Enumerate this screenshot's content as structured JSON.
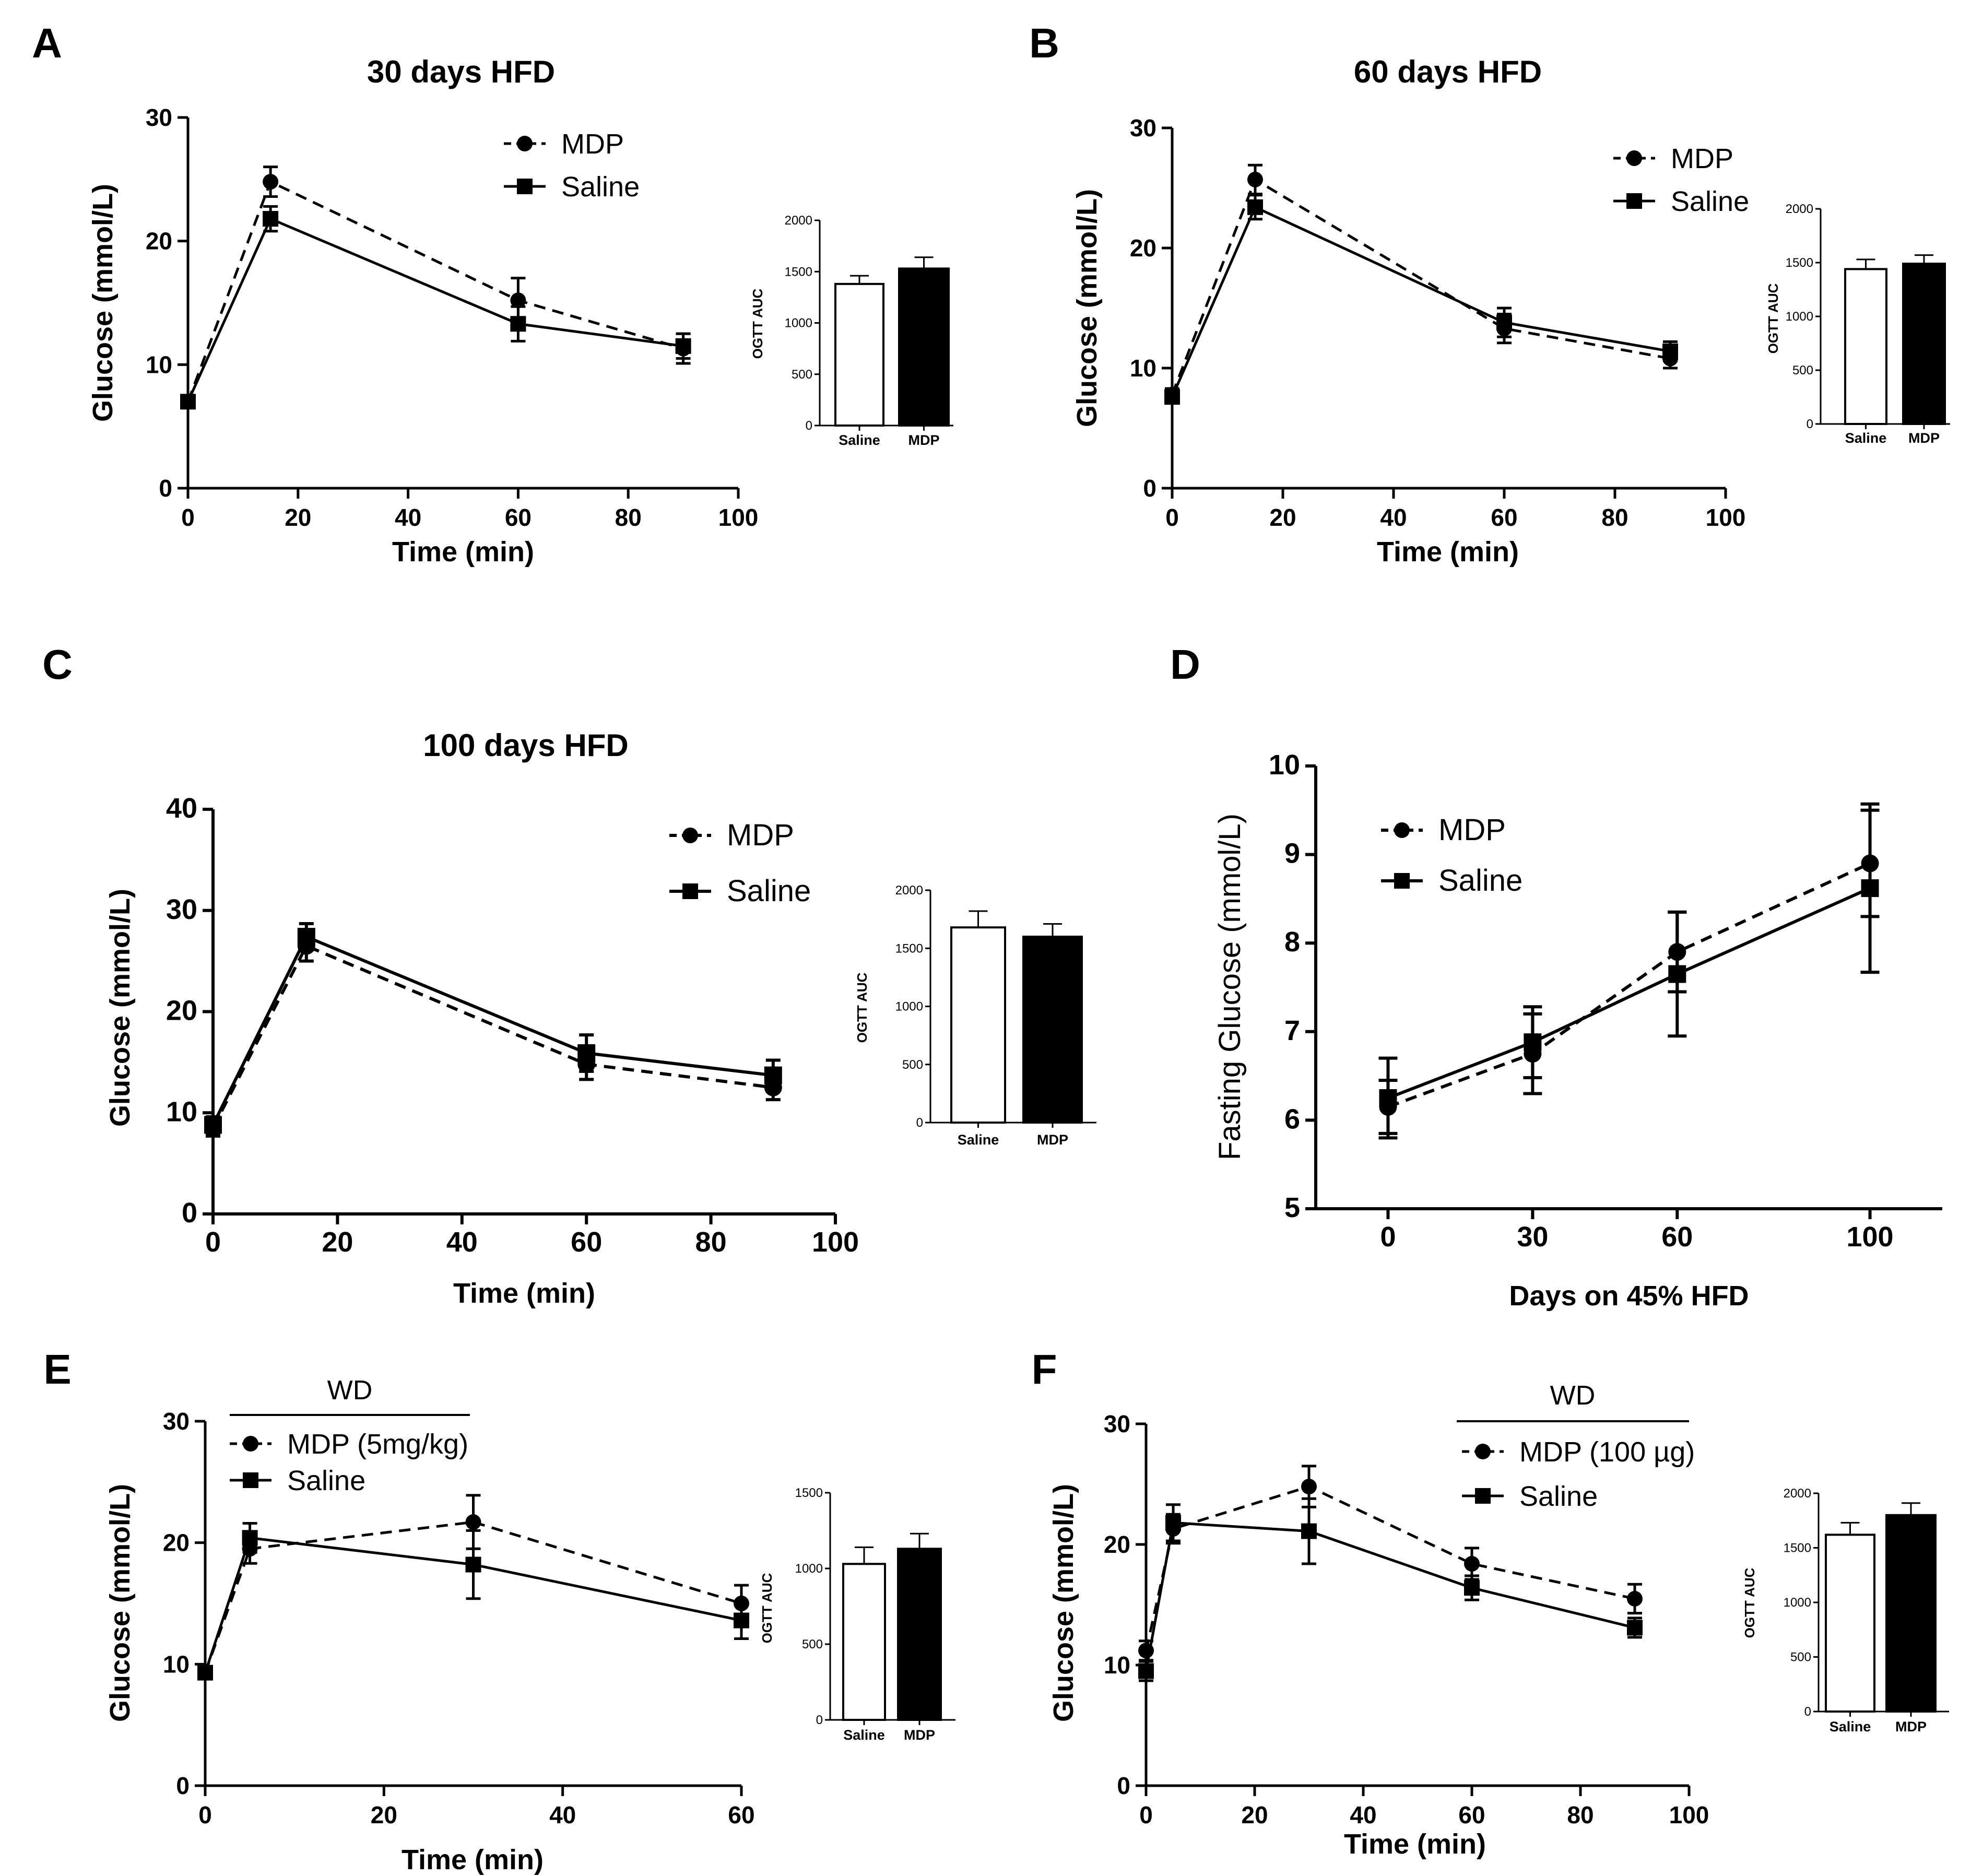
{
  "chart_data": [
    {
      "id": "A",
      "panel_label": "A",
      "type": "line",
      "title": "30 days HFD",
      "xlabel": "Time (min)",
      "ylabel": "Glucose (mmol/L)",
      "xlim": [
        0,
        100
      ],
      "ylim": [
        0,
        30
      ],
      "xticks": [
        "0",
        "20",
        "40",
        "60",
        "80",
        "100"
      ],
      "yticks": [
        "0",
        "10",
        "20",
        "30"
      ],
      "legend_header": "",
      "series": [
        {
          "name": "MDP",
          "style": "dashed",
          "marker": "circle",
          "x": [
            0,
            15,
            60,
            90
          ],
          "y": [
            7.0,
            24.8,
            15.2,
            11.3
          ],
          "err": [
            0.4,
            1.2,
            1.8,
            1.2
          ]
        },
        {
          "name": "Saline",
          "style": "solid",
          "marker": "square",
          "x": [
            0,
            15,
            60,
            90
          ],
          "y": [
            7.0,
            21.8,
            13.3,
            11.5
          ],
          "err": [
            0.3,
            1.0,
            1.4,
            1.0
          ]
        }
      ],
      "auc": {
        "ylabel": "OGTT AUC",
        "ylim": [
          0,
          2000
        ],
        "yticks": [
          "0",
          "500",
          "1000",
          "1500",
          "2000"
        ],
        "categories": [
          "Saline",
          "MDP"
        ],
        "values": [
          1380,
          1530
        ],
        "err": [
          80,
          110
        ]
      }
    },
    {
      "id": "B",
      "panel_label": "B",
      "type": "line",
      "title": "60 days HFD",
      "xlabel": "Time (min)",
      "ylabel": "Glucose (mmol/L)",
      "xlim": [
        0,
        100
      ],
      "ylim": [
        0,
        30
      ],
      "xticks": [
        "0",
        "20",
        "40",
        "60",
        "80",
        "100"
      ],
      "yticks": [
        "0",
        "10",
        "20",
        "30"
      ],
      "legend_header": "",
      "series": [
        {
          "name": "MDP",
          "style": "dashed",
          "marker": "circle",
          "x": [
            0,
            15,
            60,
            90
          ],
          "y": [
            7.8,
            25.7,
            13.3,
            10.8
          ],
          "err": [
            0.5,
            1.2,
            1.2,
            0.8
          ]
        },
        {
          "name": "Saline",
          "style": "solid",
          "marker": "square",
          "x": [
            0,
            15,
            60,
            90
          ],
          "y": [
            7.6,
            23.4,
            13.8,
            11.4
          ],
          "err": [
            0.5,
            1.0,
            1.2,
            0.8
          ]
        }
      ],
      "auc": {
        "ylabel": "OGTT AUC",
        "ylim": [
          0,
          2000
        ],
        "yticks": [
          "0",
          "500",
          "1000",
          "1500",
          "2000"
        ],
        "categories": [
          "Saline",
          "MDP"
        ],
        "values": [
          1440,
          1490
        ],
        "err": [
          90,
          80
        ]
      }
    },
    {
      "id": "C",
      "panel_label": "C",
      "type": "line",
      "title": "100 days HFD",
      "xlabel": "Time (min)",
      "ylabel": "Glucose (mmol/L)",
      "xlim": [
        0,
        100
      ],
      "ylim": [
        0,
        40
      ],
      "xticks": [
        "0",
        "20",
        "40",
        "60",
        "80",
        "100"
      ],
      "yticks": [
        "0",
        "10",
        "20",
        "30",
        "40"
      ],
      "legend_header": "",
      "series": [
        {
          "name": "MDP",
          "style": "dashed",
          "marker": "circle",
          "x": [
            0,
            15,
            60,
            90
          ],
          "y": [
            8.5,
            26.5,
            14.8,
            12.5
          ],
          "err": [
            0.8,
            1.5,
            1.5,
            1.2
          ]
        },
        {
          "name": "Saline",
          "style": "solid",
          "marker": "square",
          "x": [
            0,
            15,
            60,
            90
          ],
          "y": [
            8.8,
            27.4,
            15.9,
            13.7
          ],
          "err": [
            0.8,
            1.3,
            1.8,
            1.5
          ]
        }
      ],
      "auc": {
        "ylabel": "OGTT AUC",
        "ylim": [
          0,
          2000
        ],
        "yticks": [
          "0",
          "500",
          "1000",
          "1500",
          "2000"
        ],
        "categories": [
          "Saline",
          "MDP"
        ],
        "values": [
          1680,
          1600
        ],
        "err": [
          140,
          110
        ]
      }
    },
    {
      "id": "D",
      "panel_label": "D",
      "type": "line",
      "title": "",
      "xlabel": "Days on 45% HFD",
      "ylabel": "Fasting Glucose (mmol/L)",
      "xlim": [
        -15,
        115
      ],
      "ylim": [
        5,
        10
      ],
      "xticks": [
        "0",
        "30",
        "60",
        "100"
      ],
      "yticks": [
        "5",
        "6",
        "7",
        "8",
        "9",
        "10"
      ],
      "legend_header": "",
      "series": [
        {
          "name": "MDP",
          "style": "dashed",
          "marker": "circle",
          "x": [
            0,
            30,
            60,
            100
          ],
          "y": [
            6.15,
            6.75,
            7.9,
            8.9
          ],
          "err": [
            0.3,
            0.45,
            0.45,
            0.6
          ]
        },
        {
          "name": "Saline",
          "style": "solid",
          "marker": "square",
          "x": [
            0,
            30,
            60,
            100
          ],
          "y": [
            6.25,
            6.88,
            7.65,
            8.62
          ],
          "err": [
            0.45,
            0.4,
            0.7,
            0.95
          ]
        }
      ],
      "auc": null
    },
    {
      "id": "E",
      "panel_label": "E",
      "type": "line",
      "title": "",
      "xlabel": "Time (min)",
      "ylabel": "Glucose (mmol/L)",
      "xlim": [
        0,
        60
      ],
      "ylim": [
        0,
        30
      ],
      "xticks": [
        "0",
        "20",
        "40",
        "60"
      ],
      "yticks": [
        "0",
        "10",
        "20",
        "30"
      ],
      "legend_header": "WD",
      "series": [
        {
          "name": "MDP (5mg/kg)",
          "style": "dashed",
          "marker": "circle",
          "x": [
            0,
            5,
            30,
            60
          ],
          "y": [
            9.3,
            19.5,
            21.7,
            15.0
          ],
          "err": [
            0.5,
            1.2,
            2.2,
            1.5
          ]
        },
        {
          "name": "Saline",
          "style": "solid",
          "marker": "square",
          "x": [
            0,
            5,
            30,
            60
          ],
          "y": [
            9.3,
            20.4,
            18.2,
            13.6
          ],
          "err": [
            0.5,
            1.2,
            2.8,
            1.5
          ]
        }
      ],
      "auc": {
        "ylabel": "OGTT AUC",
        "ylim": [
          0,
          1500
        ],
        "yticks": [
          "0",
          "500",
          "1000",
          "1500"
        ],
        "categories": [
          "Saline",
          "MDP"
        ],
        "values": [
          1030,
          1130
        ],
        "err": [
          110,
          100
        ]
      }
    },
    {
      "id": "F",
      "panel_label": "F",
      "type": "line",
      "title": "",
      "xlabel": "Time (min)",
      "ylabel": "Glucose (mmol/L)",
      "xlim": [
        0,
        100
      ],
      "ylim": [
        0,
        30
      ],
      "xticks": [
        "0",
        "20",
        "40",
        "60",
        "80",
        "100"
      ],
      "yticks": [
        "0",
        "10",
        "20",
        "30"
      ],
      "legend_header": "WD",
      "series": [
        {
          "name": "MDP (100 µg)",
          "style": "dashed",
          "marker": "circle",
          "x": [
            0,
            5,
            30,
            60,
            90
          ],
          "y": [
            11.2,
            21.3,
            24.8,
            18.4,
            15.5
          ],
          "err": [
            0.8,
            1.2,
            1.7,
            1.3,
            1.2
          ]
        },
        {
          "name": "Saline",
          "style": "solid",
          "marker": "square",
          "x": [
            0,
            5,
            30,
            60,
            90
          ],
          "y": [
            9.5,
            21.8,
            21.1,
            16.4,
            13.1
          ],
          "err": [
            0.8,
            1.5,
            2.7,
            1.0,
            0.8
          ]
        }
      ],
      "auc": {
        "ylabel": "OGTT AUC",
        "ylim": [
          0,
          2000
        ],
        "yticks": [
          "0",
          "500",
          "1000",
          "1500",
          "2000"
        ],
        "categories": [
          "Saline",
          "MDP"
        ],
        "values": [
          1620,
          1800
        ],
        "err": [
          110,
          110
        ]
      }
    }
  ]
}
